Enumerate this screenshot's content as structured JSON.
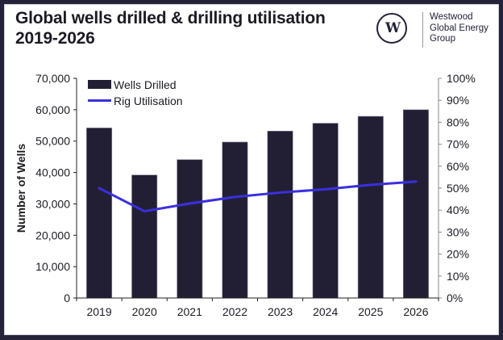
{
  "header": {
    "title_line1": "Global wells drilled & drilling utilisation",
    "title_line2": "2019-2026"
  },
  "logo": {
    "icon": "westwood-w-logo-icon",
    "mark": "W",
    "text_lines": [
      "Westwood",
      "Global Energy",
      "Group"
    ]
  },
  "colors": {
    "frame": "#24233a",
    "bar": "#221f35",
    "line": "#3a2fe0"
  },
  "chart_data": {
    "type": "bar+line",
    "title": "Global wells drilled & drilling utilisation 2019-2026",
    "categories": [
      "2019",
      "2020",
      "2021",
      "2022",
      "2023",
      "2024",
      "2025",
      "2026"
    ],
    "series": [
      {
        "name": "Wells Drilled",
        "type": "bar",
        "axis": "left",
        "values": [
          54200,
          39200,
          44100,
          49700,
          53200,
          55700,
          57900,
          60000
        ]
      },
      {
        "name": "Rig Utilisation",
        "type": "line",
        "axis": "right",
        "values": [
          50,
          39.5,
          43,
          46,
          48,
          49.5,
          51.5,
          53
        ]
      }
    ],
    "ylabel": "Number of Wells",
    "ylabel_right": "",
    "xlabel": "",
    "ylim": [
      0,
      70000
    ],
    "ylim_right": [
      0,
      100
    ],
    "yticks": [
      "0",
      "10,000",
      "20,000",
      "30,000",
      "40,000",
      "50,000",
      "60,000",
      "70,000"
    ],
    "yticks_right": [
      "0%",
      "10%",
      "20%",
      "30%",
      "40%",
      "50%",
      "60%",
      "70%",
      "80%",
      "90%",
      "100%"
    ],
    "grid": false,
    "legend": "top-left"
  }
}
